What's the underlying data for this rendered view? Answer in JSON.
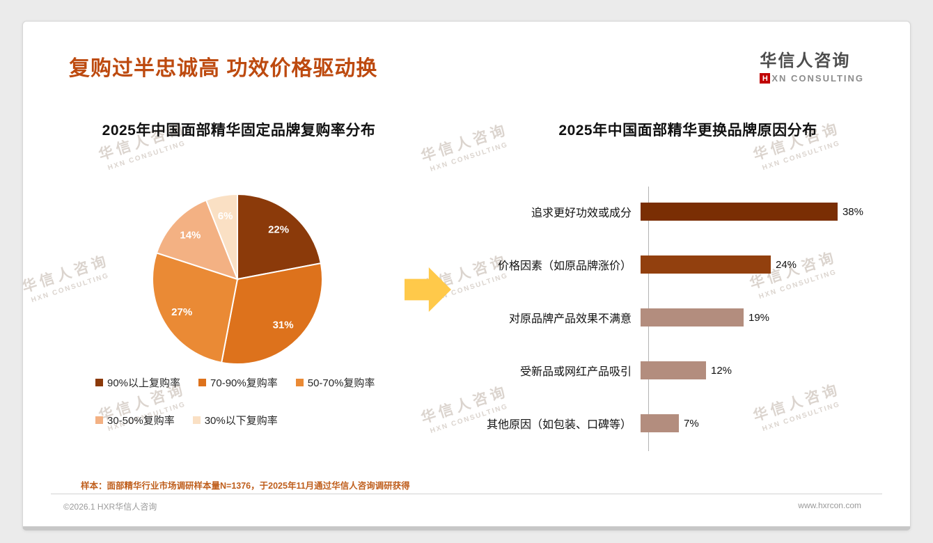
{
  "header": {
    "title": "复购过半忠诚高 功效价格驱动换",
    "logo_name": "华信人咨询",
    "logo_h": "H",
    "logo_sub": "XN CONSULTING",
    "logo_accent_color": "#c00000",
    "title_color": "#bd4a0f"
  },
  "watermark": {
    "line1": "华信人咨询",
    "line2": "HXN CONSULTING"
  },
  "arrow": {
    "color": "#ffc94a"
  },
  "footnote": "样本：面部精华行业市场调研样本量N=1376，于2025年11月通过华信人咨询调研获得",
  "footer": {
    "left": "©2026.1 HXR华信人咨询",
    "right": "www.hxrcon.com"
  },
  "chart_data": [
    {
      "type": "pie",
      "title": "2025年中国面部精华固定品牌复购率分布",
      "labels": [
        "90%以上复购率",
        "70-90%复购率",
        "50-70%复购率",
        "30-50%复购率",
        "30%以下复购率"
      ],
      "values": [
        22,
        31,
        27,
        14,
        6
      ],
      "value_labels": [
        "22%",
        "31%",
        "27%",
        "14%",
        "6%"
      ],
      "colors": [
        "#8b3a0a",
        "#dd721c",
        "#ea8a35",
        "#f3b183",
        "#fae0c4"
      ],
      "start_angle_deg": -90,
      "direction": "clockwise",
      "legend_position": "bottom",
      "legend_rows": [
        [
          0,
          1,
          2
        ],
        [
          3,
          4
        ]
      ],
      "label_color": "#ffffff"
    },
    {
      "type": "bar",
      "orientation": "horizontal",
      "title": "2025年中国面部精华更换品牌原因分布",
      "categories": [
        "追求更好功效或成分",
        "价格因素（如原品牌涨价）",
        "对原品牌产品效果不满意",
        "受新品或网红产品吸引",
        "其他原因（如包装、口碑等）"
      ],
      "values": [
        38,
        24,
        19,
        12,
        7
      ],
      "value_labels": [
        "38%",
        "24%",
        "19%",
        "12%",
        "7%"
      ],
      "colors": [
        "#7a2e04",
        "#92400e",
        "#b38d7e",
        "#b38d7e",
        "#b38d7e"
      ],
      "xlim": [
        0,
        40
      ],
      "axis_line": true,
      "grid": false
    }
  ]
}
